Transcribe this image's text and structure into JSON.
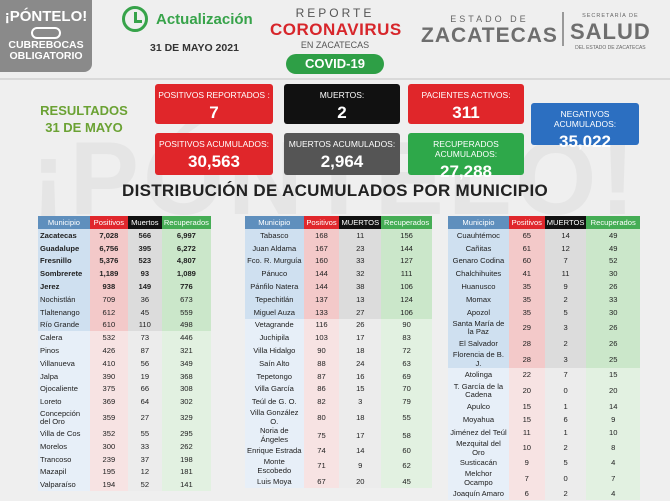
{
  "watermark": "¡PÓNTELO!",
  "badge": {
    "title": "¡PÓNTELO!",
    "line1": "CUBREBOCAS",
    "line2": "OBLIGATORIO"
  },
  "update": {
    "label": "Actualización",
    "date": "31 DE MAYO 2021"
  },
  "report": {
    "line1": "REPORTE",
    "line2": "CORONAVIRUS",
    "line3": "EN ZACATECAS",
    "pill": "COVID-19"
  },
  "estado": {
    "line1": "ESTADO DE",
    "line2": "ZACATECAS"
  },
  "salud": {
    "line1": "SECRETARÍA DE",
    "line2": "SALUD",
    "line3": "DEL ESTADO DE ZACATECAS"
  },
  "results": {
    "line1": "RESULTADOS",
    "line2": "31 DE MAYO"
  },
  "cards": {
    "positivos_reportados": {
      "label": "POSITIVOS REPORTADOS :",
      "value": "7"
    },
    "muertos": {
      "label": "MUERTOS:",
      "value": "2"
    },
    "pacientes_activos": {
      "label": "PACIENTES ACTIVOS:",
      "value": "311"
    },
    "negativos": {
      "label": "NEGATIVOS ACUMULADOS:",
      "value": "35,022"
    },
    "positivos_acumulados": {
      "label": "POSITIVOS ACUMULADOS:",
      "value": "30,563"
    },
    "muertos_acumulados": {
      "label": "MUERTOS ACUMULADOS:",
      "value": "2,964"
    },
    "recuperados": {
      "label": "RECUPERADOS ACUMULADOS:",
      "value": "27,288"
    }
  },
  "title": "DISTRIBUCIÓN DE ACUMULADOS POR MUNICIPIO",
  "tables": [
    {
      "headers": [
        "Municipio",
        "Positivos",
        "Muertos",
        "Recuperados"
      ],
      "rows": [
        [
          "Zacatecas",
          "7,028",
          "566",
          "6,997"
        ],
        [
          "Guadalupe",
          "6,756",
          "395",
          "6,272"
        ],
        [
          "Fresnillo",
          "5,376",
          "523",
          "4,807"
        ],
        [
          "Sombrerete",
          "1,189",
          "93",
          "1,089"
        ],
        [
          "Jerez",
          "938",
          "149",
          "776"
        ],
        [
          "Nochistlán",
          "709",
          "36",
          "673"
        ],
        [
          "Tlaltenango",
          "612",
          "45",
          "559"
        ],
        [
          "Río Grande",
          "610",
          "110",
          "498"
        ],
        [
          "Calera",
          "532",
          "73",
          "446"
        ],
        [
          "Pinos",
          "426",
          "87",
          "321"
        ],
        [
          "Villanueva",
          "410",
          "56",
          "349"
        ],
        [
          "Jalpa",
          "390",
          "19",
          "368"
        ],
        [
          "Ojocaliente",
          "375",
          "66",
          "308"
        ],
        [
          "Loreto",
          "369",
          "64",
          "302"
        ],
        [
          "Concepción del Oro",
          "359",
          "27",
          "329"
        ],
        [
          "Villa de Cos",
          "352",
          "55",
          "295"
        ],
        [
          "Morelos",
          "300",
          "33",
          "262"
        ],
        [
          "Trancoso",
          "239",
          "37",
          "198"
        ],
        [
          "Mazapil",
          "195",
          "12",
          "181"
        ],
        [
          "Valparaíso",
          "194",
          "52",
          "141"
        ]
      ]
    },
    {
      "headers": [
        "Municipio",
        "Positivos",
        "MUERTOS",
        "Recuperados"
      ],
      "rows": [
        [
          "Tabasco",
          "168",
          "11",
          "156"
        ],
        [
          "Juan Aldama",
          "167",
          "23",
          "144"
        ],
        [
          "Fco. R. Murguía",
          "160",
          "33",
          "127"
        ],
        [
          "Pánuco",
          "144",
          "32",
          "111"
        ],
        [
          "Pánfilo Natera",
          "144",
          "38",
          "106"
        ],
        [
          "Tepechitlán",
          "137",
          "13",
          "124"
        ],
        [
          "Miguel Auza",
          "133",
          "27",
          "106"
        ],
        [
          "Vetagrande",
          "116",
          "26",
          "90"
        ],
        [
          "Juchipila",
          "103",
          "17",
          "83"
        ],
        [
          "Villa Hidalgo",
          "90",
          "18",
          "72"
        ],
        [
          "Saín Alto",
          "88",
          "24",
          "63"
        ],
        [
          "Tepetongo",
          "87",
          "16",
          "69"
        ],
        [
          "Villa García",
          "86",
          "15",
          "70"
        ],
        [
          "Teúl de G. O.",
          "82",
          "3",
          "79"
        ],
        [
          "Villa González O.",
          "80",
          "18",
          "55"
        ],
        [
          "Noria de Ángeles",
          "75",
          "17",
          "58"
        ],
        [
          "Enrique Estrada",
          "74",
          "14",
          "60"
        ],
        [
          "Monte Escobedo",
          "71",
          "9",
          "62"
        ],
        [
          "Luis Moya",
          "67",
          "20",
          "45"
        ]
      ]
    },
    {
      "headers": [
        "Municipio",
        "Positivos",
        "MUERTOS",
        "Recuperados"
      ],
      "rows": [
        [
          "Cuauhtémoc",
          "65",
          "14",
          "49"
        ],
        [
          "Cañitas",
          "61",
          "12",
          "49"
        ],
        [
          "Genaro Codina",
          "60",
          "7",
          "52"
        ],
        [
          "Chalchihuites",
          "41",
          "11",
          "30"
        ],
        [
          "Huanusco",
          "35",
          "9",
          "26"
        ],
        [
          "Momax",
          "35",
          "2",
          "33"
        ],
        [
          "Apozol",
          "35",
          "5",
          "30"
        ],
        [
          "Santa María de la Paz",
          "29",
          "3",
          "26"
        ],
        [
          "El Salvador",
          "28",
          "2",
          "26"
        ],
        [
          "Florencia de B. J.",
          "28",
          "3",
          "25"
        ],
        [
          "Atolinga",
          "22",
          "7",
          "15"
        ],
        [
          "T. García de la Cadena",
          "20",
          "0",
          "20"
        ],
        [
          "Apulco",
          "15",
          "1",
          "14"
        ],
        [
          "Moyahua",
          "15",
          "6",
          "9"
        ],
        [
          "Jiménez del Teúl",
          "11",
          "1",
          "10"
        ],
        [
          "Mezquital del Oro",
          "10",
          "2",
          "8"
        ],
        [
          "Susticacán",
          "9",
          "5",
          "4"
        ],
        [
          "Melchor Ocampo",
          "7",
          "0",
          "7"
        ],
        [
          "Joaquín Amaro",
          "6",
          "2",
          "4"
        ]
      ]
    }
  ]
}
